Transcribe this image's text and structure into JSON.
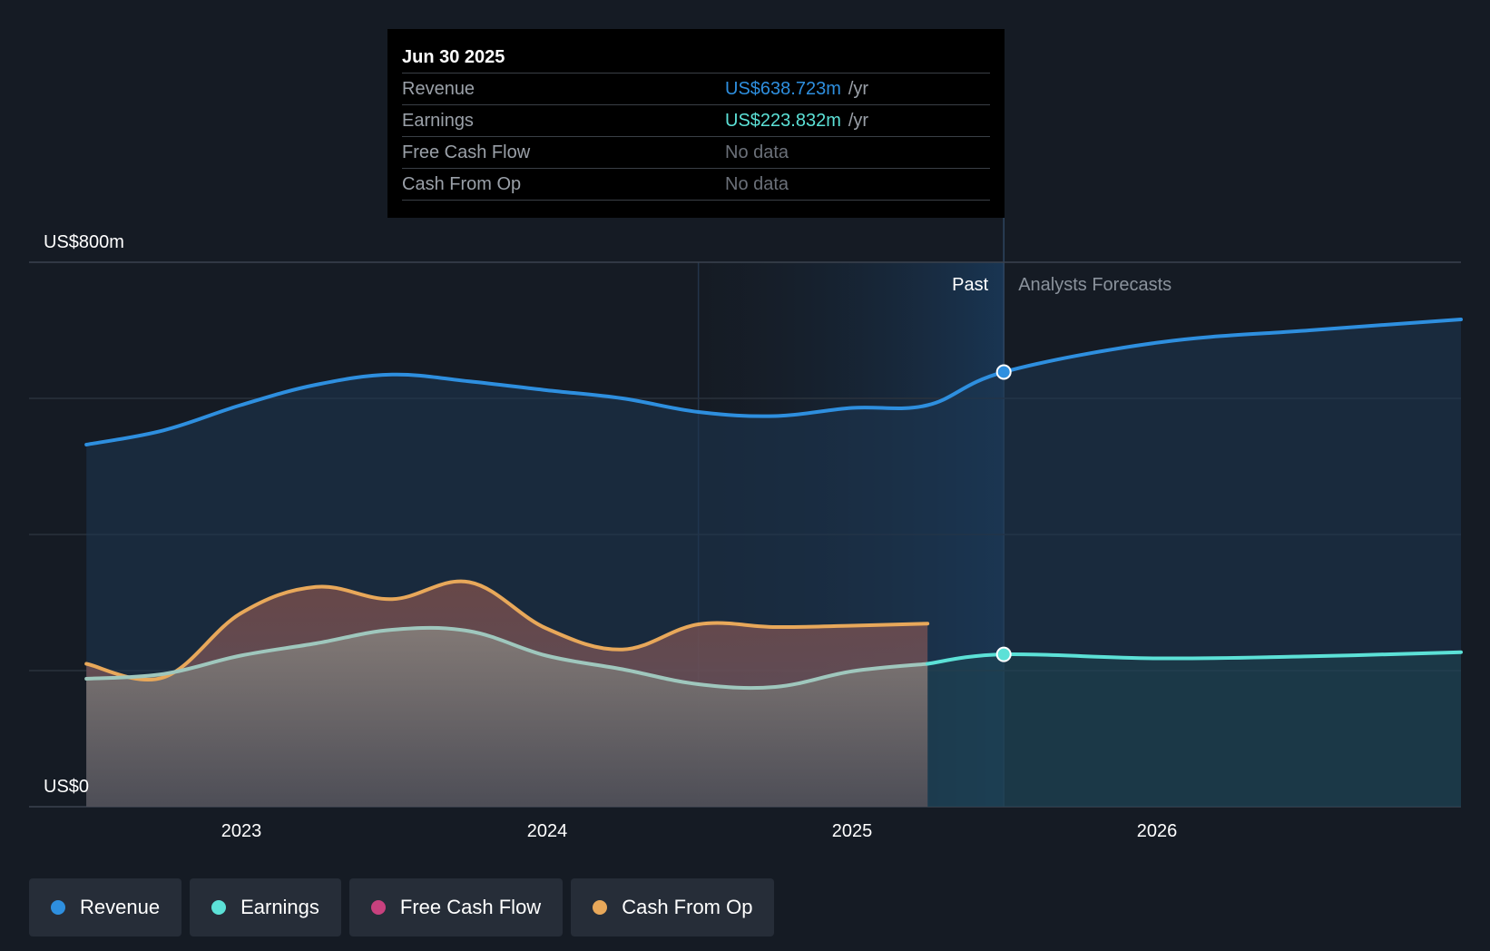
{
  "chart_data": {
    "type": "area",
    "y_axis": {
      "top_label": "US$800m",
      "bottom_label": "US$0",
      "ylim": [
        0,
        800
      ],
      "grid": true
    },
    "x_axis": {
      "ticks": [
        "2023",
        "2024",
        "2025",
        "2026"
      ]
    },
    "regions": {
      "past_label": "Past",
      "forecast_label": "Analysts Forecasts",
      "split_date": "2025-06-30"
    },
    "series": [
      {
        "name": "Revenue",
        "color": "#2e8fdf",
        "points": [
          [
            "2022-06-30",
            532
          ],
          [
            "2022-09-30",
            553
          ],
          [
            "2022-12-31",
            590
          ],
          [
            "2023-03-31",
            620
          ],
          [
            "2023-06-30",
            635
          ],
          [
            "2023-09-30",
            625
          ],
          [
            "2023-12-31",
            612
          ],
          [
            "2024-03-31",
            600
          ],
          [
            "2024-06-30",
            580
          ],
          [
            "2024-09-30",
            574
          ],
          [
            "2024-12-31",
            586
          ],
          [
            "2025-03-31",
            590
          ],
          [
            "2025-06-30",
            638.723
          ],
          [
            "2025-12-31",
            682
          ],
          [
            "2026-06-30",
            700
          ],
          [
            "2026-12-31",
            716
          ]
        ]
      },
      {
        "name": "Earnings",
        "color": "#5ce1d7",
        "points": [
          [
            "2022-06-30",
            188
          ],
          [
            "2022-09-30",
            195
          ],
          [
            "2022-12-31",
            222
          ],
          [
            "2023-03-31",
            240
          ],
          [
            "2023-06-30",
            260
          ],
          [
            "2023-09-30",
            258
          ],
          [
            "2023-12-31",
            222
          ],
          [
            "2024-03-31",
            202
          ],
          [
            "2024-06-30",
            180
          ],
          [
            "2024-09-30",
            176
          ],
          [
            "2024-12-31",
            199
          ],
          [
            "2025-03-31",
            210
          ],
          [
            "2025-06-30",
            223.832
          ],
          [
            "2025-12-31",
            218
          ],
          [
            "2026-06-30",
            221
          ],
          [
            "2026-12-31",
            227
          ]
        ]
      },
      {
        "name": "Cash From Op",
        "color": "#e8a85a",
        "points": [
          [
            "2022-06-30",
            210
          ],
          [
            "2022-09-30",
            190
          ],
          [
            "2022-12-31",
            284
          ],
          [
            "2023-03-31",
            323
          ],
          [
            "2023-06-30",
            305
          ],
          [
            "2023-09-30",
            330
          ],
          [
            "2023-12-31",
            262
          ],
          [
            "2024-03-31",
            231
          ],
          [
            "2024-06-30",
            268
          ],
          [
            "2024-09-30",
            264
          ],
          [
            "2024-12-31",
            266
          ],
          [
            "2025-03-31",
            269
          ]
        ]
      },
      {
        "name": "Free Cash Flow",
        "color": "#c8417e",
        "points": []
      }
    ]
  },
  "tooltip": {
    "date": "Jun 30 2025",
    "rows": [
      {
        "name": "Revenue",
        "value": "US$638.723m",
        "unit": "/yr",
        "color": "#2e8fdf"
      },
      {
        "name": "Earnings",
        "value": "US$223.832m",
        "unit": "/yr",
        "color": "#5ce1d7"
      },
      {
        "name": "Free Cash Flow",
        "value": "No data"
      },
      {
        "name": "Cash From Op",
        "value": "No data"
      }
    ]
  },
  "legend": [
    {
      "label": "Revenue",
      "color": "#2e8fdf"
    },
    {
      "label": "Earnings",
      "color": "#5ce1d7"
    },
    {
      "label": "Free Cash Flow",
      "color": "#c8417e"
    },
    {
      "label": "Cash From Op",
      "color": "#e8a85a"
    }
  ]
}
